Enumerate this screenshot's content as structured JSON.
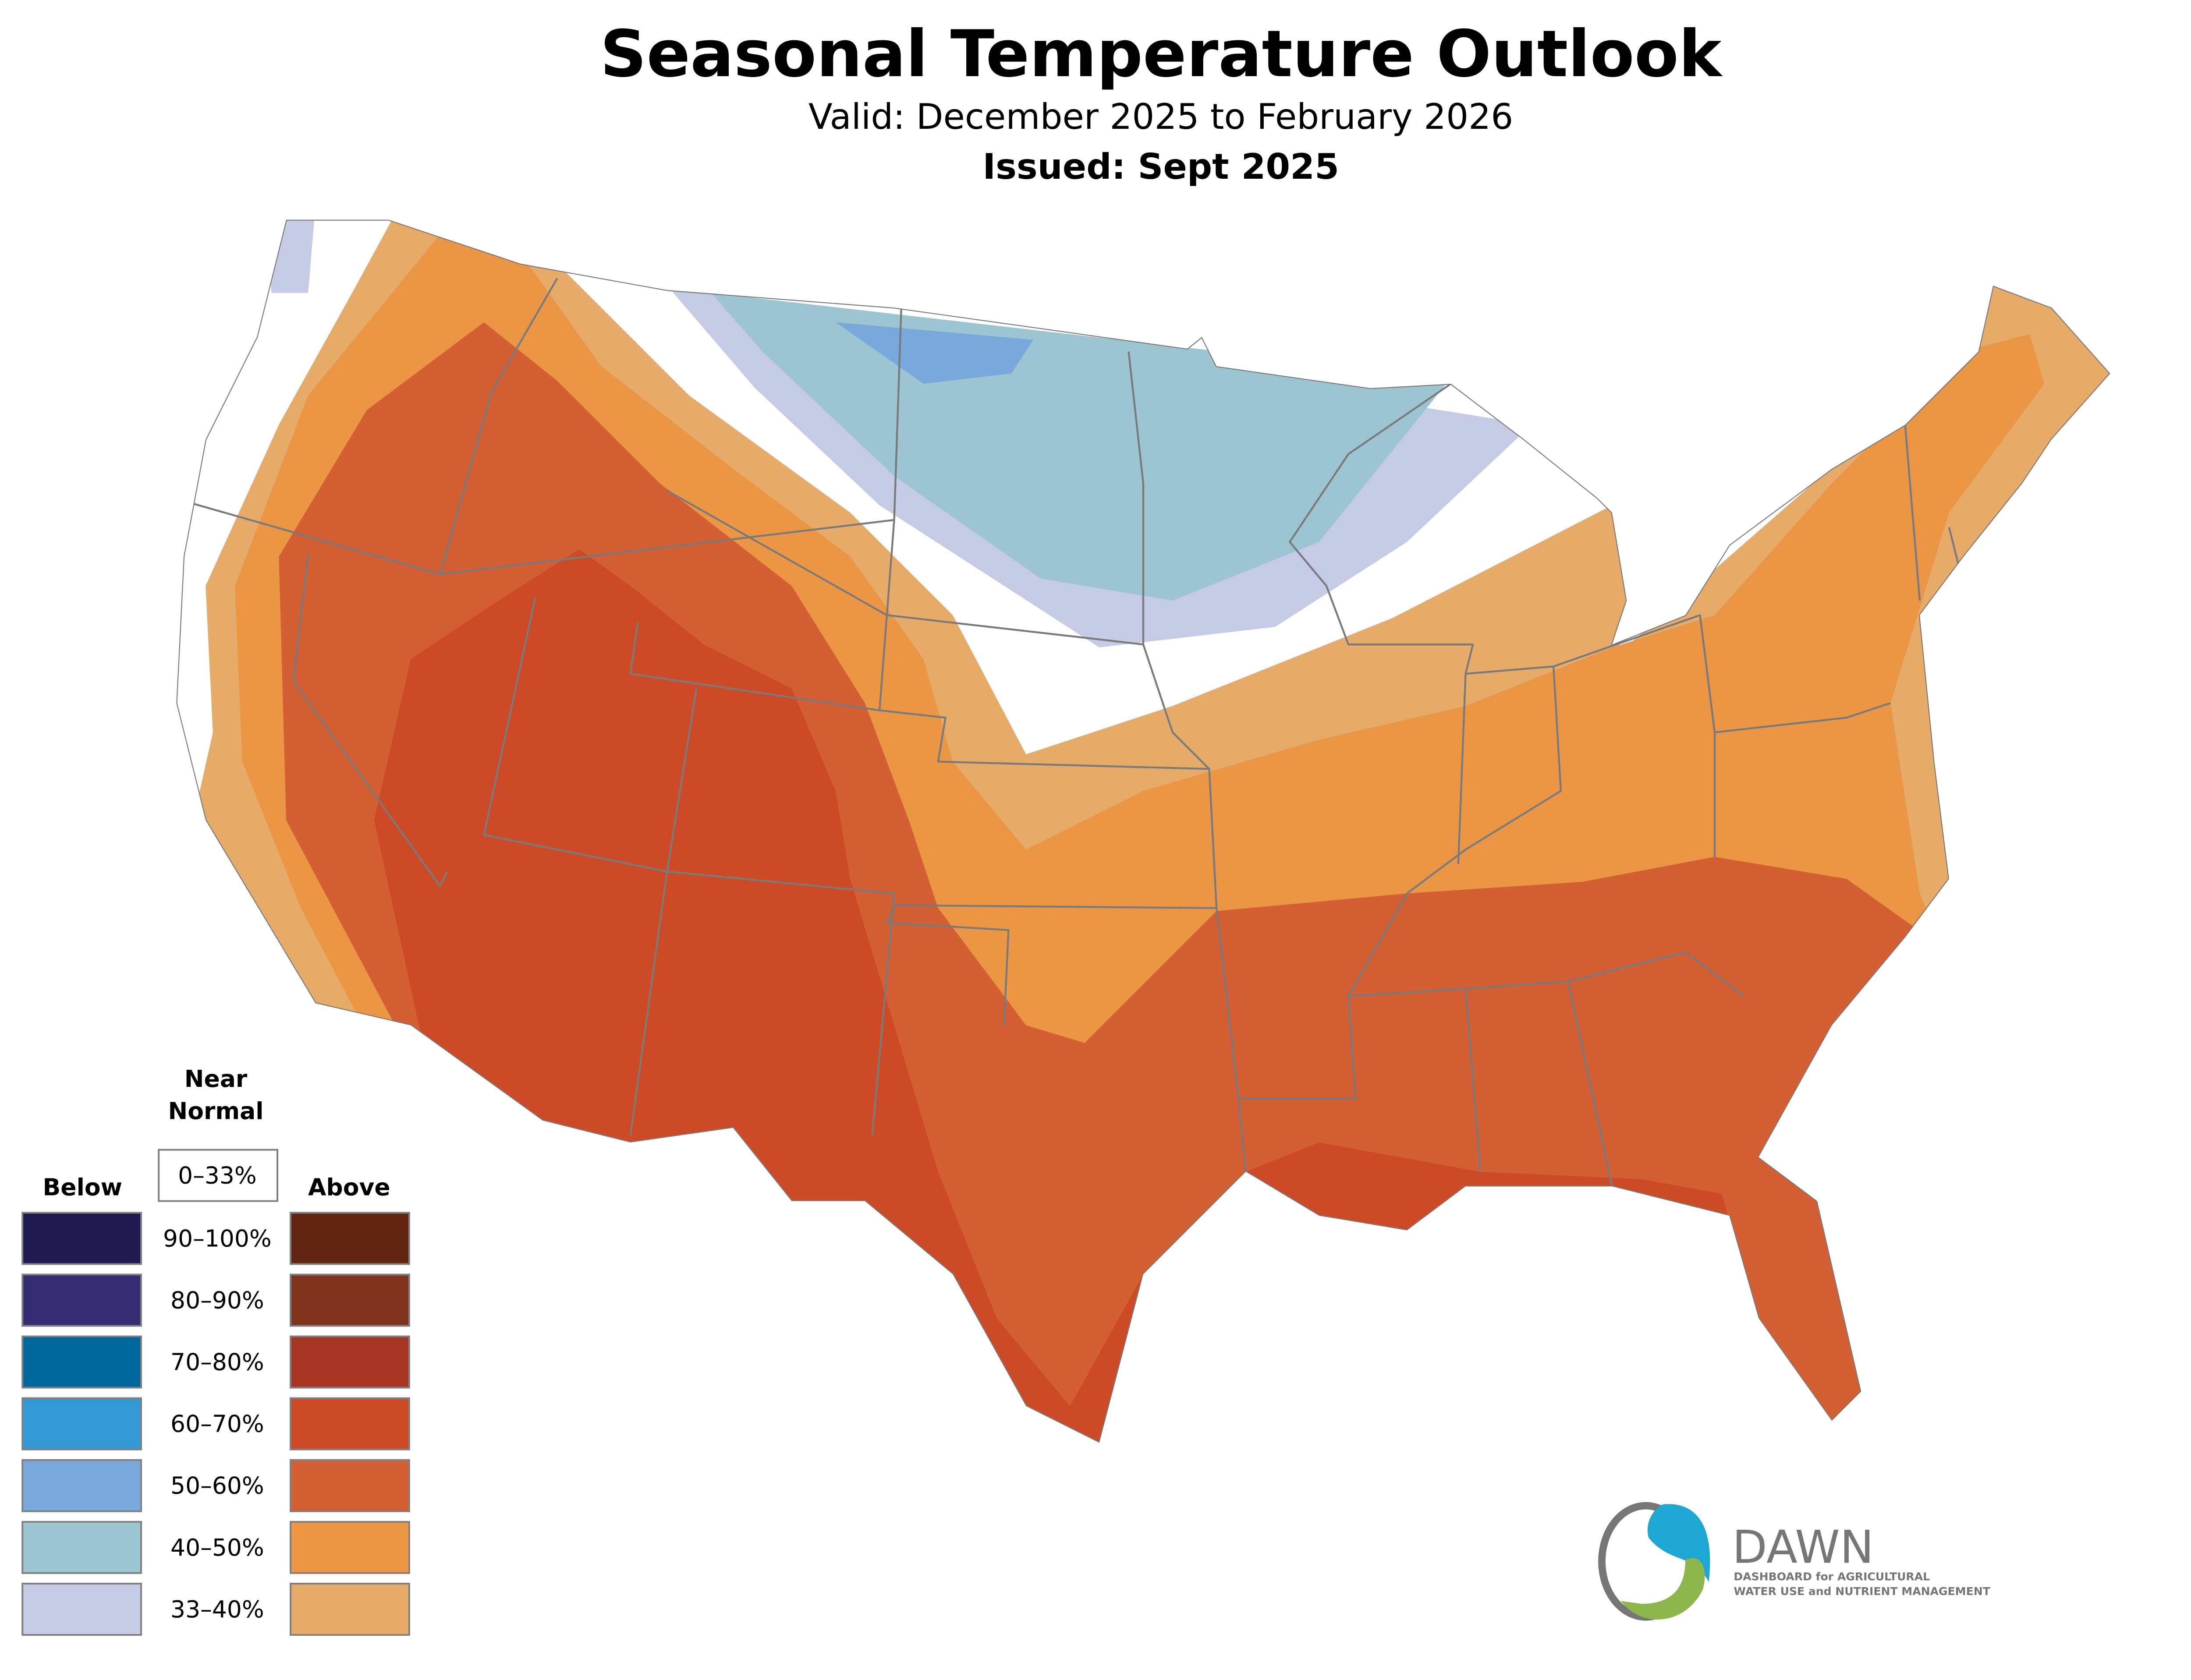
{
  "header": {
    "title": "Seasonal Temperature Outlook",
    "valid": "Valid: December 2025 to February 2026",
    "issued": "Issued: Sept 2025"
  },
  "legend": {
    "near_normal_line1": "Near",
    "near_normal_line2": "Normal",
    "near_normal_range": "0–33%",
    "below_label": "Below",
    "above_label": "Above",
    "rows": [
      {
        "label": "90–100%",
        "below_color": "#1F1A4F",
        "above_color": "#622511"
      },
      {
        "label": "80–90%",
        "below_color": "#332C72",
        "above_color": "#7E341E"
      },
      {
        "label": "70–80%",
        "below_color": "#01679D",
        "above_color": "#A63525"
      },
      {
        "label": "60–70%",
        "below_color": "#3498D5",
        "above_color": "#CC4A26"
      },
      {
        "label": "50–60%",
        "below_color": "#79A9DC",
        "above_color": "#D35F32"
      },
      {
        "label": "40–50%",
        "below_color": "#9DC5D1",
        "above_color": "#EB9645"
      },
      {
        "label": "33–40%",
        "below_color": "#C5CBE5",
        "above_color": "#E6AA69"
      }
    ]
  },
  "logo": {
    "name": "DAWN",
    "line1": "DASHBOARD for AGRICULTURAL",
    "line2": "WATER USE and NUTRIENT MANAGEMENT"
  }
}
